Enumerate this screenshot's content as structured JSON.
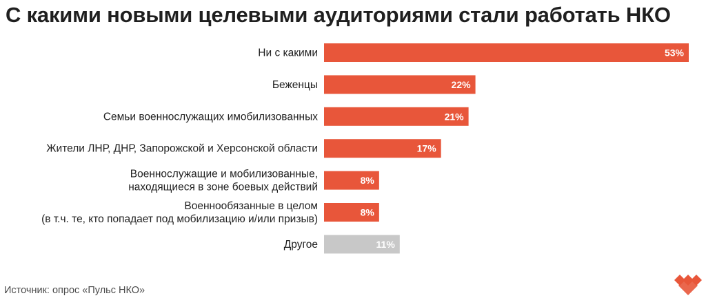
{
  "title": "С какими новыми целевыми аудиториями стали работать НКО",
  "source": "Источник: опрос «Пульс НКО»",
  "colors": {
    "bar": "#e8563a",
    "bar_other": "#c8c8c8",
    "logo": "#e8563a",
    "value_text": "#ffffff",
    "label_text": "#1f1f1f"
  },
  "chart_data": {
    "type": "bar",
    "orientation": "horizontal",
    "categories": [
      [
        "Ни с какими"
      ],
      [
        "Беженцы"
      ],
      [
        "Семьи военнослужащих имобилизованных"
      ],
      [
        "Жители ЛНР, ДНР, Запорожской и Херсонской области"
      ],
      [
        "Военнослужащие и мобилизованные,",
        "находящиеся в зоне боевых действий"
      ],
      [
        "Военнообязанные в целом",
        "(в т.ч. те, кто попадает под мобилизацию и/или призыв)"
      ],
      [
        "Другое"
      ]
    ],
    "values": [
      53,
      22,
      21,
      17,
      8,
      8,
      11
    ],
    "value_labels": [
      "53%",
      "22%",
      "21%",
      "17%",
      "8%",
      "8%",
      "11%"
    ],
    "highlight": [
      true,
      true,
      true,
      true,
      true,
      true,
      false
    ],
    "unit": "%",
    "xlim": [
      0,
      53
    ],
    "grid": false,
    "legend": "none"
  }
}
